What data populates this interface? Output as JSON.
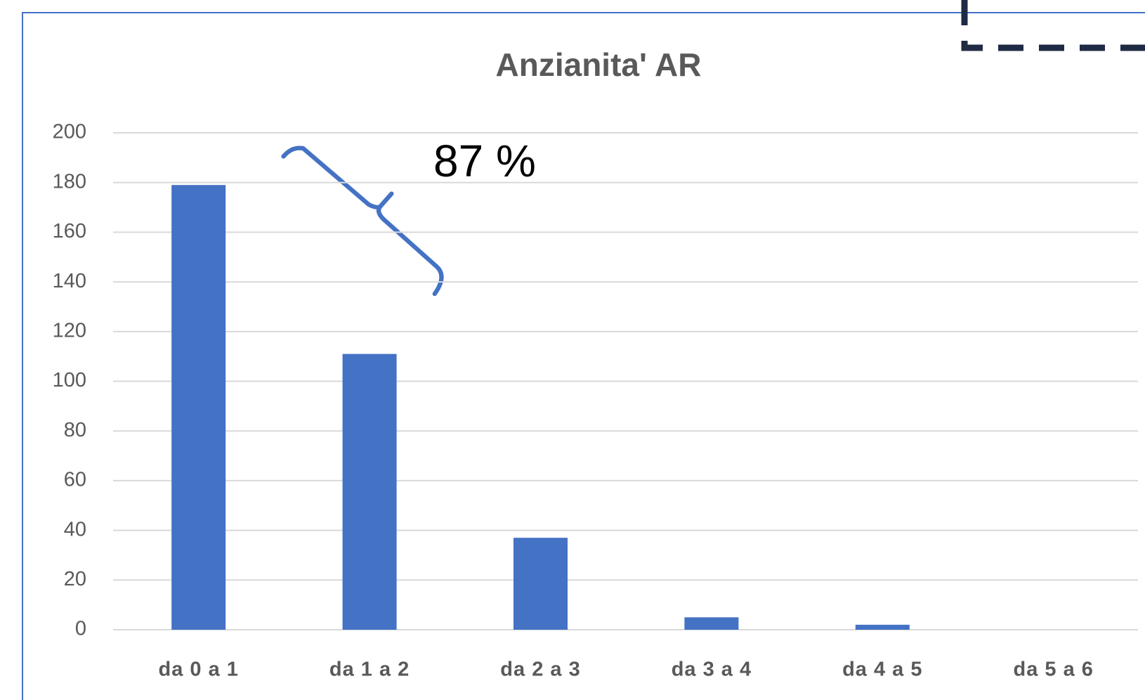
{
  "chart_data": {
    "type": "bar",
    "title": "Anzianita' AR",
    "categories": [
      "da 0 a 1",
      "da 1 a 2",
      "da 2 a 3",
      "da 3 a 4",
      "da 4 a 5",
      "da 5 a 6"
    ],
    "values": [
      179,
      111,
      37,
      5,
      2,
      0
    ],
    "color": "#4472c4",
    "ylim": [
      0,
      200
    ],
    "yticks": [
      0,
      20,
      40,
      60,
      80,
      100,
      120,
      140,
      160,
      180,
      200
    ],
    "grid": true,
    "annotation": "87 %"
  }
}
